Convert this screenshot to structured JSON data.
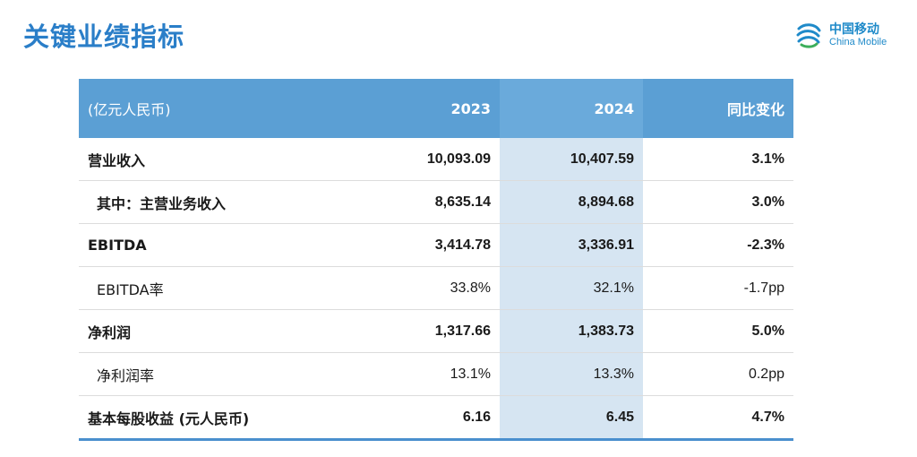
{
  "title": "关键业绩指标",
  "logo": {
    "cn": "中国移动",
    "en": "China Mobile",
    "icon": "china-mobile-logo-icon",
    "color": "#1f8ac9"
  },
  "colors": {
    "title": "#2a7ec8",
    "header_bg": "#5b9fd4",
    "highlight_col": "#d6e5f2",
    "bottom_rule": "#4a8fce"
  },
  "table": {
    "headers": [
      "(亿元人民币)",
      "2023",
      "2024",
      "同比变化"
    ],
    "rows": [
      {
        "label": "营业收入",
        "y2023": "10,093.09",
        "y2024": "10,407.59",
        "change": "3.1%",
        "bold": true,
        "indent": false
      },
      {
        "label": "其中：主营业务收入",
        "y2023": "8,635.14",
        "y2024": "8,894.68",
        "change": "3.0%",
        "bold": true,
        "indent": true
      },
      {
        "label": "EBITDA",
        "y2023": "3,414.78",
        "y2024": "3,336.91",
        "change": "-2.3%",
        "bold": true,
        "indent": false
      },
      {
        "label": "EBITDA率",
        "y2023": "33.8%",
        "y2024": "32.1%",
        "change": "-1.7pp",
        "bold": false,
        "indent": true
      },
      {
        "label": "净利润",
        "y2023": "1,317.66",
        "y2024": "1,383.73",
        "change": "5.0%",
        "bold": true,
        "indent": false
      },
      {
        "label": "净利润率",
        "y2023": "13.1%",
        "y2024": "13.3%",
        "change": "0.2pp",
        "bold": false,
        "indent": true
      },
      {
        "label": "基本每股收益 (元人民币)",
        "y2023": "6.16",
        "y2024": "6.45",
        "change": "4.7%",
        "bold": true,
        "indent": false
      }
    ]
  }
}
